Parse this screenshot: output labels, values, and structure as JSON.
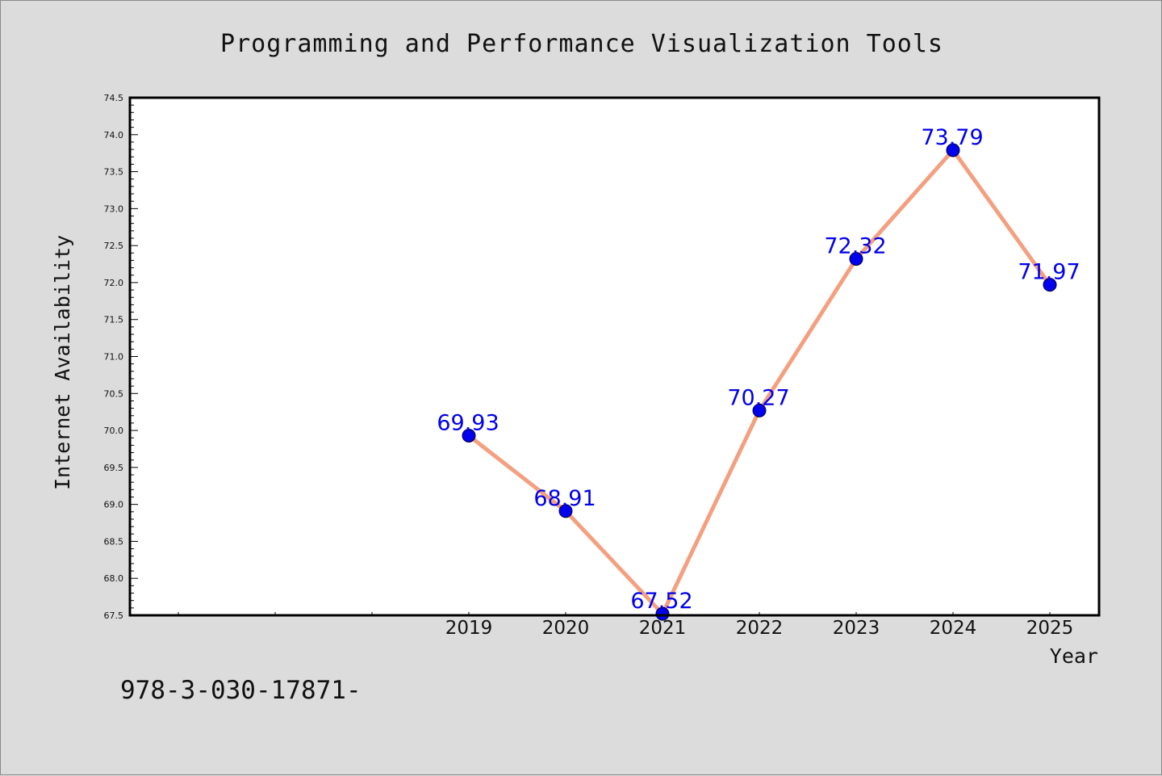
{
  "chart_data": {
    "type": "line",
    "title": "Programming and Performance Visualization Tools",
    "xlabel": "Year",
    "ylabel": "Internet Availability",
    "categories": [
      "2019",
      "2020",
      "2021",
      "2022",
      "2023",
      "2024",
      "2025"
    ],
    "x_value_labels": [
      "2019",
      "2020",
      "2021",
      "2022",
      "2023",
      "2024",
      "2025"
    ],
    "values": [
      69.93,
      68.91,
      67.52,
      70.27,
      72.32,
      73.79,
      71.97
    ],
    "value_labels": [
      "69.93",
      "68.91",
      "67.52",
      "70.27",
      "72.32",
      "73.79",
      "71.97"
    ],
    "ylim": [
      67.5,
      74.5
    ],
    "yticks": [
      "67.5",
      "68.0",
      "68.5",
      "69.0",
      "69.5",
      "70.0",
      "70.5",
      "71.0",
      "71.5",
      "72.0",
      "72.5",
      "73.0",
      "73.5",
      "74.0",
      "74.5"
    ],
    "grid": false,
    "legend": "none",
    "line_color": "#f4a080",
    "marker_color": "#0000ee",
    "label_color": "#0000ee"
  },
  "footer": {
    "isbn_text": "978-3-030-17871-"
  }
}
